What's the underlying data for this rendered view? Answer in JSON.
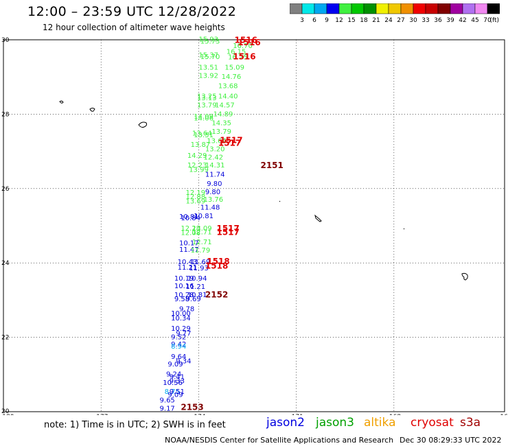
{
  "header": {
    "title": "12:00 – 23:59 UTC 12/28/2022",
    "subtitle": "12 hour collection of altimeter wave heights"
  },
  "color_scale": {
    "colors": [
      "#808080",
      "#00e8e8",
      "#00a8f0",
      "#0000f0",
      "#40f040",
      "#00c800",
      "#009000",
      "#f0f000",
      "#f0c800",
      "#f09000",
      "#f00000",
      "#c80000",
      "#800000",
      "#a000a0",
      "#b070f0",
      "#f088f0",
      "#000000"
    ],
    "labels": [
      "3",
      "6",
      "9",
      "12",
      "15",
      "18",
      "21",
      "24",
      "27",
      "30",
      "33",
      "36",
      "39",
      "42",
      "45",
      "70"
    ],
    "unit": "(ft)"
  },
  "axes": {
    "x_ticks": [
      "-180",
      "-177",
      "-174",
      "-171",
      "-168",
      "-16"
    ],
    "y_ticks": [
      "30",
      "28",
      "26",
      "24",
      "22",
      "20"
    ]
  },
  "chart_data": {
    "type": "scatter",
    "xlabel": "",
    "ylabel": "",
    "xlim": [
      -180,
      -164.6
    ],
    "ylim": [
      20,
      30
    ],
    "grid": true,
    "points": [
      {
        "lon": -174.0,
        "lat": 29.95,
        "v": "15.93",
        "c": "#40f040"
      },
      {
        "lon": -173.95,
        "lat": 29.9,
        "v": "15.73",
        "c": "#40f040"
      },
      {
        "lon": -172.95,
        "lat": 29.78,
        "v": "16.70",
        "c": "#40f040"
      },
      {
        "lon": -173.15,
        "lat": 29.62,
        "v": "16.15",
        "c": "#40f040"
      },
      {
        "lon": -173.1,
        "lat": 29.47,
        "v": "16.25",
        "c": "#40f040"
      },
      {
        "lon": -174.0,
        "lat": 29.53,
        "v": "15.37",
        "c": "#40f040"
      },
      {
        "lon": -173.95,
        "lat": 29.48,
        "v": "15.70",
        "c": "#40f040"
      },
      {
        "lon": -173.2,
        "lat": 29.2,
        "v": "15.09",
        "c": "#40f040"
      },
      {
        "lon": -174.0,
        "lat": 29.2,
        "v": "13.51",
        "c": "#40f040"
      },
      {
        "lon": -174.0,
        "lat": 28.98,
        "v": "13.92",
        "c": "#40f040"
      },
      {
        "lon": -173.3,
        "lat": 28.95,
        "v": "14.76",
        "c": "#40f040"
      },
      {
        "lon": -173.4,
        "lat": 28.7,
        "v": "13.68",
        "c": "#40f040"
      },
      {
        "lon": -173.4,
        "lat": 28.42,
        "v": "14.40",
        "c": "#40f040"
      },
      {
        "lon": -174.05,
        "lat": 28.42,
        "v": "13.25",
        "c": "#40f040"
      },
      {
        "lon": -174.05,
        "lat": 28.38,
        "v": "13.13",
        "c": "#40f040"
      },
      {
        "lon": -173.5,
        "lat": 28.18,
        "v": "14.57",
        "c": "#40f040"
      },
      {
        "lon": -174.05,
        "lat": 28.18,
        "v": "13.79",
        "c": "#40f040"
      },
      {
        "lon": -173.55,
        "lat": 27.94,
        "v": "14.89",
        "c": "#40f040"
      },
      {
        "lon": -174.15,
        "lat": 27.88,
        "v": "14.09",
        "c": "#40f040"
      },
      {
        "lon": -174.15,
        "lat": 27.83,
        "v": "14.06",
        "c": "#40f040"
      },
      {
        "lon": -173.6,
        "lat": 27.7,
        "v": "14.35",
        "c": "#40f040"
      },
      {
        "lon": -173.6,
        "lat": 27.47,
        "v": "13.79",
        "c": "#40f040"
      },
      {
        "lon": -174.2,
        "lat": 27.43,
        "v": "13.64",
        "c": "#40f040"
      },
      {
        "lon": -174.15,
        "lat": 27.38,
        "v": "13.51",
        "c": "#40f040"
      },
      {
        "lon": -173.75,
        "lat": 27.22,
        "v": "13.64",
        "c": "#40f040"
      },
      {
        "lon": -174.25,
        "lat": 27.12,
        "v": "13.87",
        "c": "#40f040"
      },
      {
        "lon": -173.8,
        "lat": 27.0,
        "v": "13.20",
        "c": "#40f040"
      },
      {
        "lon": -174.35,
        "lat": 26.83,
        "v": "14.29",
        "c": "#40f040"
      },
      {
        "lon": -173.85,
        "lat": 26.78,
        "v": "12.42",
        "c": "#40f040"
      },
      {
        "lon": -174.35,
        "lat": 26.57,
        "v": "12.23",
        "c": "#40f040"
      },
      {
        "lon": -173.8,
        "lat": 26.57,
        "v": "14.31",
        "c": "#40f040"
      },
      {
        "lon": -174.3,
        "lat": 26.45,
        "v": "13.99",
        "c": "#40f040"
      },
      {
        "lon": -173.8,
        "lat": 26.32,
        "v": "11.74",
        "c": "#0000d8"
      },
      {
        "lon": -173.75,
        "lat": 26.07,
        "v": "9.80",
        "c": "#0000d8"
      },
      {
        "lon": -174.4,
        "lat": 25.83,
        "v": "12.19",
        "c": "#40f040"
      },
      {
        "lon": -173.8,
        "lat": 25.85,
        "v": "9.80",
        "c": "#0000d8"
      },
      {
        "lon": -174.4,
        "lat": 25.72,
        "v": "12.88",
        "c": "#40f040"
      },
      {
        "lon": -173.85,
        "lat": 25.65,
        "v": "13.76",
        "c": "#40f040"
      },
      {
        "lon": -174.4,
        "lat": 25.6,
        "v": "13.69",
        "c": "#40f040"
      },
      {
        "lon": -173.95,
        "lat": 25.43,
        "v": "11.48",
        "c": "#0000d8"
      },
      {
        "lon": -174.6,
        "lat": 25.18,
        "v": "10.81",
        "c": "#0000d8"
      },
      {
        "lon": -174.15,
        "lat": 25.2,
        "v": "10.81",
        "c": "#0000d8"
      },
      {
        "lon": -174.55,
        "lat": 25.15,
        "v": "10.84",
        "c": "#0000d8"
      },
      {
        "lon": -174.55,
        "lat": 24.87,
        "v": "12.28",
        "c": "#40f040"
      },
      {
        "lon": -174.2,
        "lat": 24.87,
        "v": "13.09",
        "c": "#40f040"
      },
      {
        "lon": -174.55,
        "lat": 24.75,
        "v": "12.08",
        "c": "#40f040"
      },
      {
        "lon": -174.2,
        "lat": 24.77,
        "v": "12.71",
        "c": "#40f040"
      },
      {
        "lon": -174.6,
        "lat": 24.47,
        "v": "10.17",
        "c": "#0000d8"
      },
      {
        "lon": -174.2,
        "lat": 24.5,
        "v": "12.71",
        "c": "#40f040"
      },
      {
        "lon": -174.6,
        "lat": 24.3,
        "v": "11.47",
        "c": "#0000d8"
      },
      {
        "lon": -174.25,
        "lat": 24.28,
        "v": "11.79",
        "c": "#40f040"
      },
      {
        "lon": -174.65,
        "lat": 23.97,
        "v": "10.43",
        "c": "#0000d8"
      },
      {
        "lon": -174.25,
        "lat": 23.97,
        "v": "11.69",
        "c": "#0000d8"
      },
      {
        "lon": -174.65,
        "lat": 23.82,
        "v": "11.21",
        "c": "#0000d8"
      },
      {
        "lon": -174.3,
        "lat": 23.8,
        "v": "11.93",
        "c": "#0000d8"
      },
      {
        "lon": -174.75,
        "lat": 23.52,
        "v": "10.19",
        "c": "#0000d8"
      },
      {
        "lon": -174.35,
        "lat": 23.52,
        "v": "10.94",
        "c": "#0000d8"
      },
      {
        "lon": -174.75,
        "lat": 23.32,
        "v": "10.16",
        "c": "#0000d8"
      },
      {
        "lon": -174.4,
        "lat": 23.3,
        "v": "11.21",
        "c": "#0000d8"
      },
      {
        "lon": -174.75,
        "lat": 23.08,
        "v": "10.28",
        "c": "#0000d8"
      },
      {
        "lon": -174.35,
        "lat": 23.08,
        "v": "10.81",
        "c": "#0000d8"
      },
      {
        "lon": -174.75,
        "lat": 22.97,
        "v": "9.58",
        "c": "#0000d8"
      },
      {
        "lon": -174.4,
        "lat": 22.97,
        "v": "9.69",
        "c": "#0000d8"
      },
      {
        "lon": -174.6,
        "lat": 22.7,
        "v": "9.78",
        "c": "#0000d8"
      },
      {
        "lon": -174.85,
        "lat": 22.58,
        "v": "10.00",
        "c": "#0000d8"
      },
      {
        "lon": -174.85,
        "lat": 22.45,
        "v": "10.34",
        "c": "#0000d8"
      },
      {
        "lon": -174.85,
        "lat": 22.18,
        "v": "10.29",
        "c": "#0000d8"
      },
      {
        "lon": -174.7,
        "lat": 22.05,
        "v": "9.77",
        "c": "#0000d8"
      },
      {
        "lon": -174.85,
        "lat": 21.95,
        "v": "9.52",
        "c": "#0000d8"
      },
      {
        "lon": -174.85,
        "lat": 21.75,
        "v": "9.42",
        "c": "#0000d8"
      },
      {
        "lon": -174.85,
        "lat": 21.7,
        "v": "8.94",
        "c": "#00a8f0"
      },
      {
        "lon": -174.85,
        "lat": 21.42,
        "v": "9.64",
        "c": "#0000d8"
      },
      {
        "lon": -174.7,
        "lat": 21.3,
        "v": "9.34",
        "c": "#0000d8"
      },
      {
        "lon": -174.95,
        "lat": 21.22,
        "v": "9.09",
        "c": "#0000d8"
      },
      {
        "lon": -175.0,
        "lat": 20.95,
        "v": "9.24",
        "c": "#0000d8"
      },
      {
        "lon": -174.9,
        "lat": 20.88,
        "v": "9.41",
        "c": "#0000d8"
      },
      {
        "lon": -174.9,
        "lat": 20.77,
        "v": "9.33",
        "c": "#0000d8"
      },
      {
        "lon": -175.1,
        "lat": 20.72,
        "v": "10.56",
        "c": "#0000d8"
      },
      {
        "lon": -175.05,
        "lat": 20.48,
        "v": "8.75",
        "c": "#00a8f0"
      },
      {
        "lon": -174.9,
        "lat": 20.48,
        "v": "9.51",
        "c": "#0000d8"
      },
      {
        "lon": -174.95,
        "lat": 20.4,
        "v": "9.09",
        "c": "#0000d8"
      },
      {
        "lon": -175.2,
        "lat": 20.25,
        "v": "9.65",
        "c": "#0000d8"
      },
      {
        "lon": -175.2,
        "lat": 20.03,
        "v": "9.17",
        "c": "#0000d8"
      }
    ],
    "time_labels": [
      {
        "lon": -172.9,
        "lat": 29.92,
        "v": "1516",
        "c": "#e00000"
      },
      {
        "lon": -172.8,
        "lat": 29.85,
        "v": "1516",
        "c": "#e00000"
      },
      {
        "lon": -172.95,
        "lat": 29.47,
        "v": "1516",
        "c": "#e00000"
      },
      {
        "lon": -173.35,
        "lat": 27.22,
        "v": "1517",
        "c": "#e00000"
      },
      {
        "lon": -173.4,
        "lat": 27.15,
        "v": "1517",
        "c": "#e00000"
      },
      {
        "lon": -172.1,
        "lat": 26.55,
        "v": "2151",
        "c": "#800000"
      },
      {
        "lon": -173.45,
        "lat": 24.85,
        "v": "1517",
        "c": "#e00000"
      },
      {
        "lon": -173.45,
        "lat": 24.75,
        "v": "1517",
        "c": "#e00000"
      },
      {
        "lon": -173.75,
        "lat": 23.97,
        "v": "1518",
        "c": "#e00000"
      },
      {
        "lon": -173.8,
        "lat": 23.85,
        "v": "1518",
        "c": "#e00000"
      },
      {
        "lon": -173.8,
        "lat": 23.07,
        "v": "2152",
        "c": "#800000"
      },
      {
        "lon": -174.55,
        "lat": 20.05,
        "v": "2153",
        "c": "#800000"
      }
    ]
  },
  "footer": {
    "note": "note:  1) Time is in UTC;  2) SWH is in feet",
    "legend": [
      {
        "name": "jason2",
        "color": "#0000e0"
      },
      {
        "name": "jason3",
        "color": "#00a000"
      },
      {
        "name": "altika",
        "color": "#f0a000"
      },
      {
        "name": "cryosat",
        "color": "#e00000"
      },
      {
        "name": "s3a",
        "color": "#a00000"
      }
    ],
    "credit": "NOAA/NESDIS Center for Satellite Applications and Research",
    "timestamp": "Dec 30 08:29:33 UTC 2022"
  }
}
